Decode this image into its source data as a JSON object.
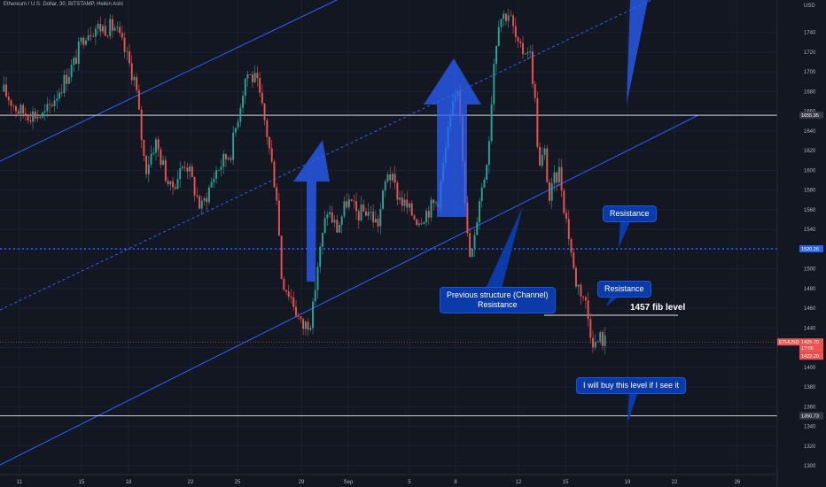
{
  "header": {
    "symbol_line": "Ethereum / U.S. Dollar, 30, BITSTAMP, Heikin Ashi"
  },
  "colors": {
    "background": "#131722",
    "up_candle": "#26a69a",
    "down_candle": "#ef5350",
    "channel_line": "#2962ff",
    "arrow_fill": "#2962ff",
    "callout_bg": "#0b3ba8",
    "current_price": "#ef5350"
  },
  "chart_data": {
    "type": "candlestick",
    "y_axis": {
      "label": "USD",
      "ticks": [
        1740,
        1720,
        1700,
        1680,
        1660,
        1640,
        1620,
        1600,
        1580,
        1560,
        1540,
        1520,
        1500,
        1480,
        1460,
        1440,
        1420,
        1400,
        1380,
        1360,
        1340,
        1320,
        1300
      ],
      "range": [
        1291,
        1773
      ]
    },
    "x_axis": {
      "ticks": [
        "11",
        "15",
        "18",
        "22",
        "25",
        "29",
        "Sep",
        "5",
        "8",
        "12",
        "15",
        "19",
        "22",
        "26"
      ]
    },
    "horizontal_levels": [
      {
        "price": 1655.95,
        "label": "1655.95",
        "style": "solid"
      },
      {
        "price": 1520.26,
        "label": "1520.26",
        "style": "dotted"
      },
      {
        "price": 1350.73,
        "label": "1350.73",
        "style": "solid"
      }
    ],
    "current_price": {
      "label": "ETHUSD",
      "value": "1425.70",
      "countdown": "17:06",
      "low_value": "1422.20"
    },
    "price_path": [
      [
        0,
        1680
      ],
      [
        3,
        1660
      ],
      [
        8,
        1655
      ],
      [
        14,
        1710
      ],
      [
        16,
        1740
      ],
      [
        18,
        1745
      ],
      [
        20,
        1745
      ],
      [
        22,
        1745
      ],
      [
        24,
        1720
      ],
      [
        26,
        1690
      ],
      [
        28,
        1600
      ],
      [
        30,
        1630
      ],
      [
        33,
        1580
      ],
      [
        36,
        1610
      ],
      [
        39,
        1560
      ],
      [
        42,
        1600
      ],
      [
        45,
        1620
      ],
      [
        48,
        1700
      ],
      [
        50,
        1690
      ],
      [
        52,
        1640
      ],
      [
        54,
        1575
      ],
      [
        55,
        1490
      ],
      [
        57,
        1470
      ],
      [
        59,
        1440
      ],
      [
        61,
        1450
      ],
      [
        62,
        1500
      ],
      [
        64,
        1560
      ],
      [
        66,
        1540
      ],
      [
        68,
        1570
      ],
      [
        70,
        1555
      ],
      [
        72,
        1560
      ],
      [
        74,
        1545
      ],
      [
        76,
        1600
      ],
      [
        78,
        1575
      ],
      [
        80,
        1560
      ],
      [
        82,
        1550
      ],
      [
        84,
        1560
      ],
      [
        86,
        1570
      ],
      [
        88,
        1640
      ],
      [
        90,
        1690
      ],
      [
        91,
        1600
      ],
      [
        92,
        1510
      ],
      [
        93,
        1520
      ],
      [
        94,
        1570
      ],
      [
        95,
        1590
      ],
      [
        96,
        1630
      ],
      [
        97,
        1710
      ],
      [
        98,
        1755
      ],
      [
        100,
        1760
      ],
      [
        101,
        1740
      ],
      [
        102,
        1720
      ],
      [
        104,
        1725
      ],
      [
        105,
        1680
      ],
      [
        106,
        1600
      ],
      [
        107,
        1620
      ],
      [
        108,
        1570
      ],
      [
        109,
        1590
      ],
      [
        110,
        1600
      ],
      [
        111,
        1560
      ],
      [
        112,
        1530
      ],
      [
        113,
        1490
      ],
      [
        114,
        1480
      ],
      [
        115,
        1470
      ],
      [
        116,
        1440
      ],
      [
        117,
        1422
      ],
      [
        118,
        1430
      ],
      [
        119,
        1426
      ]
    ],
    "annotations": [
      "Resistance",
      "Resistance",
      "1457 fib level",
      "Previous structure (Channel) Resistance",
      "I will buy this level if I see it"
    ]
  },
  "callouts": {
    "resistance_top": "Resistance",
    "resistance_mid": "Resistance",
    "fib_level": "1457 fib level",
    "channel_line1": "Previous structure (Channel)",
    "channel_line2": "Resistance",
    "buy_note": "I will buy this level if I see it"
  }
}
